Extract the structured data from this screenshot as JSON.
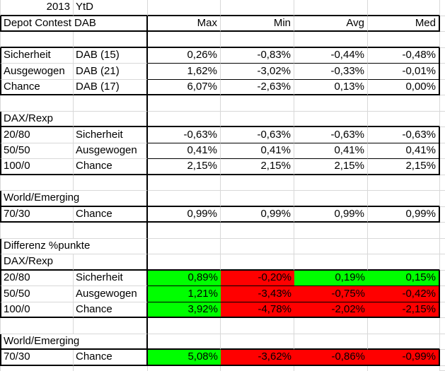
{
  "title_row": {
    "year": "2013",
    "period": "YtD"
  },
  "table_title": "Depot Contest DAB",
  "column_headers": [
    "Max",
    "Min",
    "Avg",
    "Med"
  ],
  "colors": {
    "positive_fill": "#00ff00",
    "negative_fill": "#ff0000",
    "gridline": "#d8d8d8",
    "border": "#000000",
    "text": "#000000",
    "background": "#ffffff"
  },
  "rows": [
    {
      "cells": {
        "a": "2013",
        "b": "YtD"
      }
    },
    {
      "cells": {
        "a": "Depot Contest DAB",
        "c": "Max",
        "d": "Min",
        "e": "Avg",
        "f": "Med"
      }
    },
    {
      "cells": {}
    },
    {
      "cells": {
        "a": "Sicherheit",
        "b": "DAB (15)",
        "c": "0,26%",
        "d": "-0,83%",
        "e": "-0,44%",
        "f": "-0,48%"
      }
    },
    {
      "cells": {
        "a": "Ausgewogen",
        "b": "DAB (21)",
        "c": "1,62%",
        "d": "-3,02%",
        "e": "-0,33%",
        "f": "-0,01%"
      }
    },
    {
      "cells": {
        "a": "Chance",
        "b": "DAB (17)",
        "c": "6,07%",
        "d": "-2,63%",
        "e": "0,13%",
        "f": "0,00%"
      }
    },
    {
      "cells": {}
    },
    {
      "cells": {
        "a": "DAX/Rexp"
      }
    },
    {
      "cells": {
        "a": "20/80",
        "b": "Sicherheit",
        "c": "-0,63%",
        "d": "-0,63%",
        "e": "-0,63%",
        "f": "-0,63%"
      }
    },
    {
      "cells": {
        "a": "50/50",
        "b": "Ausgewogen",
        "c": "0,41%",
        "d": "0,41%",
        "e": "0,41%",
        "f": "0,41%"
      }
    },
    {
      "cells": {
        "a": "100/0",
        "b": "Chance",
        "c": "2,15%",
        "d": "2,15%",
        "e": "2,15%",
        "f": "2,15%"
      }
    },
    {
      "cells": {}
    },
    {
      "cells": {
        "a": "World/Emerging"
      }
    },
    {
      "cells": {
        "a": "70/30",
        "b": "Chance",
        "c": "0,99%",
        "d": "0,99%",
        "e": "0,99%",
        "f": "0,99%"
      }
    },
    {
      "cells": {}
    },
    {
      "cells": {
        "a": "Differenz %punkte"
      }
    },
    {
      "cells": {
        "a": "DAX/Rexp"
      }
    },
    {
      "cells": {
        "a": "20/80",
        "b": "Sicherheit",
        "c": "0,89%",
        "d": "-0,20%",
        "e": "0,19%",
        "f": "0,15%"
      },
      "fills": {
        "c": "positive_fill",
        "d": "negative_fill",
        "e": "positive_fill",
        "f": "positive_fill"
      }
    },
    {
      "cells": {
        "a": "50/50",
        "b": "Ausgewogen",
        "c": "1,21%",
        "d": "-3,43%",
        "e": "-0,75%",
        "f": "-0,42%"
      },
      "fills": {
        "c": "positive_fill",
        "d": "negative_fill",
        "e": "negative_fill",
        "f": "negative_fill"
      }
    },
    {
      "cells": {
        "a": "100/0",
        "b": "Chance",
        "c": "3,92%",
        "d": "-4,78%",
        "e": "-2,02%",
        "f": "-2,15%"
      },
      "fills": {
        "c": "positive_fill",
        "d": "negative_fill",
        "e": "negative_fill",
        "f": "negative_fill"
      }
    },
    {
      "cells": {}
    },
    {
      "cells": {
        "a": "World/Emerging"
      }
    },
    {
      "cells": {
        "a": "70/30",
        "b": "Chance",
        "c": "5,08%",
        "d": "-3,62%",
        "e": "-0,86%",
        "f": "-0,99%"
      },
      "fills": {
        "c": "positive_fill",
        "d": "negative_fill",
        "e": "negative_fill",
        "f": "negative_fill"
      }
    },
    {
      "cells": {}
    }
  ]
}
